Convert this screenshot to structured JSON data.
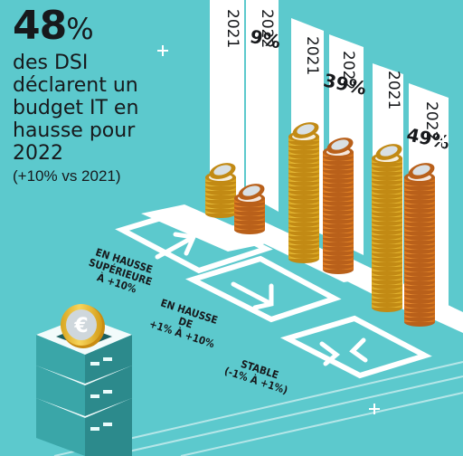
{
  "headline": {
    "big_value": "48",
    "big_unit": "%",
    "line1": "des DSI",
    "line2": "déclarent un",
    "line3": "budget IT en",
    "line4": "hausse pour",
    "line5": "2022",
    "comparison": "(+10% vs 2021)"
  },
  "chart_data": {
    "type": "bar",
    "categories": [
      "EN HAUSSE SUPÉRIEURE À +10%",
      "EN HAUSSE DE +1% À +10%",
      "STABLE (-1% À +1%)"
    ],
    "series": [
      {
        "name": "2021",
        "values": [
          null,
          null,
          null
        ]
      },
      {
        "name": "2022",
        "values": [
          9,
          39,
          49
        ]
      }
    ],
    "value_labels": [
      "9%",
      "39%",
      "49%"
    ],
    "category_labels": [
      [
        "EN HAUSSE",
        "SUPÉRIEURE",
        "À +10%"
      ],
      [
        "EN HAUSSE",
        "DE",
        "+1% À +10%"
      ],
      [
        "STABLE",
        "(-1% À +1%)"
      ]
    ],
    "colors": {
      "series_2021": "#f2c12e",
      "series_2022": "#ef8f2a",
      "background": "#5cc9cd",
      "panel": "#ffffff"
    },
    "icons": [
      "arrow-up-right-icon",
      "arrow-down-right-icon",
      "stable-arrows-icon",
      "euro-coin-icon",
      "server-icon"
    ]
  }
}
